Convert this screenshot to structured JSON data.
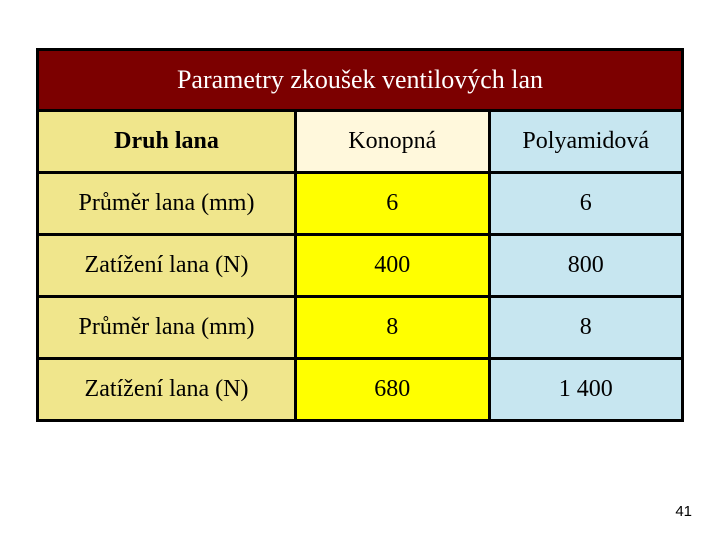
{
  "table": {
    "type": "table",
    "title": "Parametry zkoušek ventilových lan",
    "title_color": "#ffffff",
    "title_bg": "#7c0000",
    "title_fontsize": 26,
    "border_color": "#000000",
    "border_width": 3,
    "columns": [
      {
        "key": "label",
        "header": "Druh lana",
        "bg": "#f0e68c",
        "header_bold": true
      },
      {
        "key": "col1",
        "header": "Konopná",
        "bg": "#fff8dc",
        "header_bold": false
      },
      {
        "key": "col2",
        "header": "Polyamidová",
        "bg": "#c7e6f0",
        "header_bold": false
      }
    ],
    "rows": [
      {
        "label": "Průměr lana (mm)",
        "col1": "6",
        "col2": "6",
        "label_bg": "#f0e68c",
        "col1_bg": "#ffff00",
        "col2_bg": "#c7e6f0"
      },
      {
        "label": "Zatížení lana (N)",
        "col1": "400",
        "col2": "800",
        "label_bg": "#f0e68c",
        "col1_bg": "#ffff00",
        "col2_bg": "#c7e6f0"
      },
      {
        "label": "Průměr lana (mm)",
        "col1": "8",
        "col2": "8",
        "label_bg": "#f0e68c",
        "col1_bg": "#ffff00",
        "col2_bg": "#c7e6f0"
      },
      {
        "label": "Zatížení lana (N)",
        "col1": "680",
        "col2": "1 400",
        "label_bg": "#f0e68c",
        "col1_bg": "#ffff00",
        "col2_bg": "#c7e6f0"
      }
    ],
    "body_fontsize": 24
  },
  "page_number": "41",
  "page_number_fontsize": 15,
  "page_number_color": "#000000"
}
